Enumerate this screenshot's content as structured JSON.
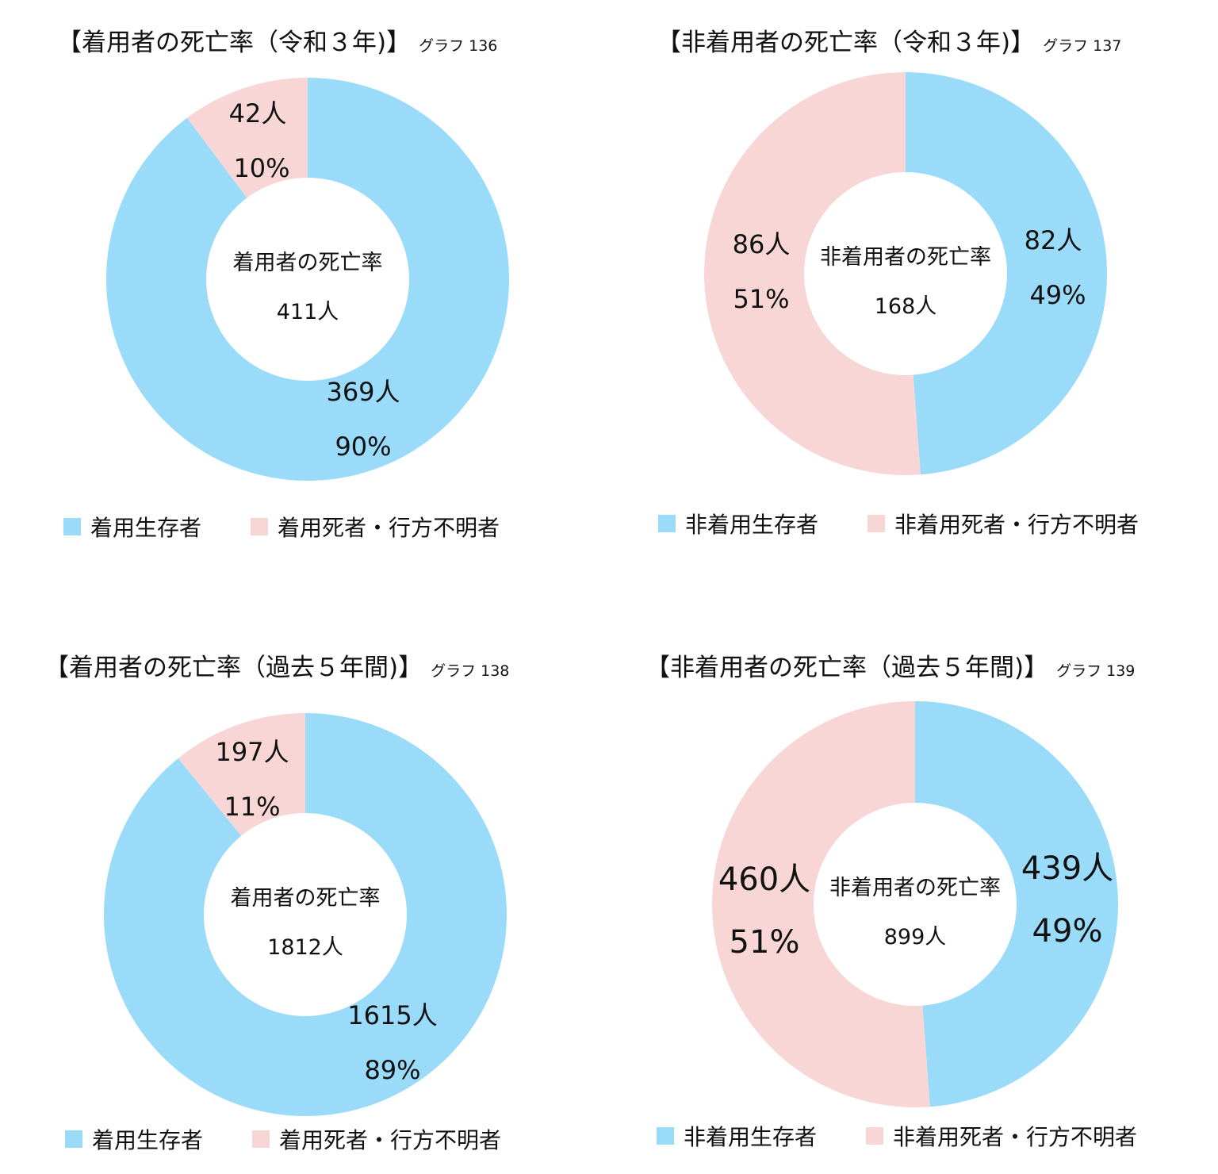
{
  "colors": {
    "survivor": "#99dbf9",
    "deceased": "#f8d6d6"
  },
  "chart_data": [
    {
      "type": "pie",
      "title": "【着用者の死亡率（令和３年)】",
      "tag": "グラフ 136",
      "center_label": "着用者の死亡率",
      "center_total": "411人",
      "slices": [
        {
          "name": "着用生存者",
          "value": 369,
          "count_label": "369人",
          "pct_label": "90%"
        },
        {
          "name": "着用死者・行方不明者",
          "value": 42,
          "count_label": "42人",
          "pct_label": "10%"
        }
      ]
    },
    {
      "type": "pie",
      "title": "【非着用者の死亡率（令和３年)】",
      "tag": "グラフ 137",
      "center_label": "非着用者の死亡率",
      "center_total": "168人",
      "slices": [
        {
          "name": "非着用生存者",
          "value": 82,
          "count_label": "82人",
          "pct_label": "49%"
        },
        {
          "name": "非着用死者・行方不明者",
          "value": 86,
          "count_label": "86人",
          "pct_label": "51%"
        }
      ]
    },
    {
      "type": "pie",
      "title": "【着用者の死亡率（過去５年間)】",
      "tag": "グラフ 138",
      "center_label": "着用者の死亡率",
      "center_total": "1812人",
      "slices": [
        {
          "name": "着用生存者",
          "value": 1615,
          "count_label": "1615人",
          "pct_label": "89%"
        },
        {
          "name": "着用死者・行方不明者",
          "value": 197,
          "count_label": "197人",
          "pct_label": "11%"
        }
      ]
    },
    {
      "type": "pie",
      "title": "【非着用者の死亡率（過去５年間)】",
      "tag": "グラフ 139",
      "center_label": "非着用者の死亡率",
      "center_total": "899人",
      "slices": [
        {
          "name": "非着用生存者",
          "value": 439,
          "count_label": "439人",
          "pct_label": "49%"
        },
        {
          "name": "非着用死者・行方不明者",
          "value": 460,
          "count_label": "460人",
          "pct_label": "51%"
        }
      ]
    }
  ]
}
